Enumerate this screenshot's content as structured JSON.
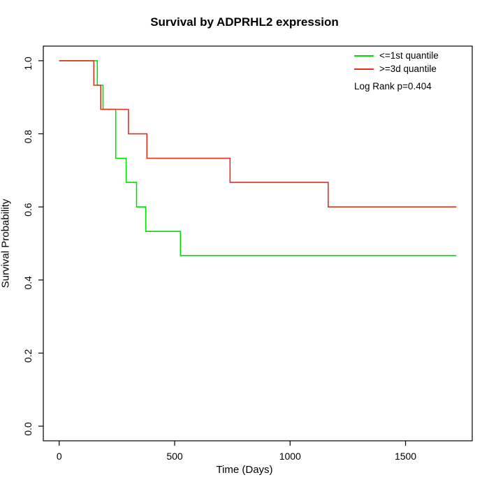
{
  "chart_data": {
    "type": "line",
    "subtype": "kaplan-meier-step",
    "title": "Survival by ADPRHL2 expression",
    "xlabel": "Time (Days)",
    "ylabel": "Survival Probability",
    "xlim": [
      0,
      1720
    ],
    "ylim": [
      0.0,
      1.0
    ],
    "x_ticks": [
      0,
      500,
      1000,
      1500
    ],
    "x_tick_labels": [
      "0",
      "500",
      "1000",
      "1500"
    ],
    "y_ticks": [
      0.0,
      0.2,
      0.4,
      0.6,
      0.8,
      1.0
    ],
    "y_tick_labels": [
      "0.0",
      "0.2",
      "0.4",
      "0.6",
      "0.8",
      "1.0"
    ],
    "grid": false,
    "legend_position": "top-right",
    "annotation": "Log Rank p=0.404",
    "axis_color": "#000000",
    "background": "#ffffff",
    "series": [
      {
        "name": "<=1st quantile",
        "color": "#00e000",
        "points": [
          [
            0,
            1.0
          ],
          [
            165,
            1.0
          ],
          [
            165,
            0.933
          ],
          [
            190,
            0.933
          ],
          [
            190,
            0.867
          ],
          [
            245,
            0.867
          ],
          [
            245,
            0.733
          ],
          [
            290,
            0.733
          ],
          [
            290,
            0.667
          ],
          [
            335,
            0.667
          ],
          [
            335,
            0.6
          ],
          [
            375,
            0.6
          ],
          [
            375,
            0.533
          ],
          [
            525,
            0.533
          ],
          [
            525,
            0.467
          ],
          [
            1720,
            0.467
          ]
        ]
      },
      {
        "name": ">=3d quantile",
        "color": "#e03020",
        "points": [
          [
            0,
            1.0
          ],
          [
            150,
            1.0
          ],
          [
            150,
            0.933
          ],
          [
            180,
            0.933
          ],
          [
            180,
            0.867
          ],
          [
            300,
            0.867
          ],
          [
            300,
            0.8
          ],
          [
            380,
            0.8
          ],
          [
            380,
            0.733
          ],
          [
            740,
            0.733
          ],
          [
            740,
            0.667
          ],
          [
            1165,
            0.667
          ],
          [
            1165,
            0.6
          ],
          [
            1720,
            0.6
          ]
        ]
      }
    ]
  }
}
